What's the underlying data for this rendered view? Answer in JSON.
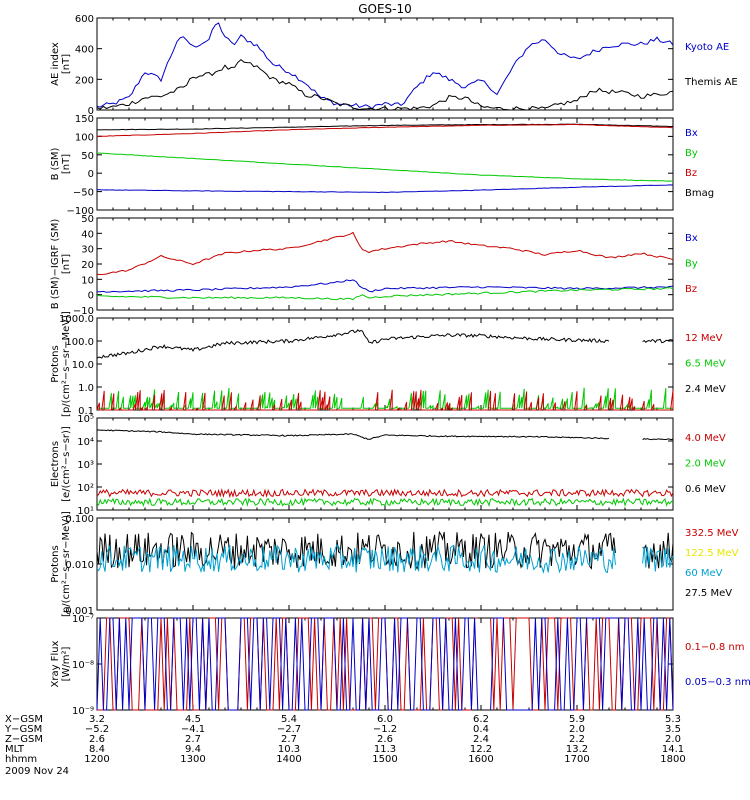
{
  "chart_data": {
    "type": "line",
    "title": "GOES-10",
    "date_label": "2009 Nov 24",
    "x_range": [
      1200,
      1800
    ],
    "panels": [
      {
        "id": "ae",
        "ylabel": [
          "AE index",
          "[nT]"
        ],
        "ylim": [
          0,
          600
        ],
        "scale": "linear",
        "yticks": [
          {
            "v": 0,
            "t": "0"
          },
          {
            "v": 200,
            "t": "200"
          },
          {
            "v": 400,
            "t": "400"
          },
          {
            "v": 600,
            "t": "600"
          }
        ],
        "legend": [
          {
            "label": "Kyoto AE",
            "color": "#0000c8"
          },
          {
            "label": "Themis AE",
            "color": "#000000"
          }
        ],
        "series": [
          {
            "name": "Kyoto AE",
            "color": "#0000c8",
            "x": [
              1200,
              1210,
              1220,
              1230,
              1240,
              1250,
              1255,
              1300,
              1310,
              1315,
              1320,
              1325,
              1330,
              1340,
              1350,
              1400,
              1410,
              1420,
              1430,
              1440,
              1450,
              1500,
              1510,
              1520,
              1530,
              1540,
              1550,
              1600,
              1605,
              1610,
              1620,
              1630,
              1640,
              1650,
              1700,
              1710,
              1720,
              1730,
              1740,
              1750,
              1800
            ],
            "y": [
              20,
              40,
              80,
              250,
              200,
              450,
              470,
              410,
              460,
              580,
              480,
              420,
              480,
              420,
              300,
              250,
              180,
              80,
              40,
              30,
              20,
              40,
              30,
              150,
              250,
              200,
              150,
              190,
              160,
              100,
              280,
              420,
              460,
              360,
              330,
              380,
              420,
              430,
              430,
              460,
              430
            ]
          },
          {
            "name": "Themis AE",
            "color": "#000000",
            "x": [
              1200,
              1210,
              1220,
              1230,
              1240,
              1250,
              1255,
              1300,
              1310,
              1320,
              1325,
              1330,
              1340,
              1350,
              1400,
              1410,
              1420,
              1430,
              1440,
              1450,
              1500,
              1510,
              1520,
              1530,
              1540,
              1550,
              1600,
              1610,
              1620,
              1630,
              1640,
              1650,
              1700,
              1710,
              1720,
              1730,
              1740,
              1750,
              1800
            ],
            "y": [
              10,
              20,
              40,
              80,
              90,
              130,
              150,
              220,
              230,
              280,
              260,
              320,
              280,
              200,
              170,
              100,
              80,
              40,
              20,
              10,
              10,
              10,
              10,
              30,
              80,
              80,
              20,
              10,
              10,
              10,
              5,
              40,
              60,
              130,
              120,
              110,
              90,
              100,
              120
            ]
          }
        ]
      },
      {
        "id": "bsm",
        "ylabel": [
          "B (SM)",
          "[nT]"
        ],
        "ylim": [
          -100,
          150
        ],
        "scale": "linear",
        "yticks": [
          {
            "v": -100,
            "t": "−100"
          },
          {
            "v": -50,
            "t": "−50"
          },
          {
            "v": 0,
            "t": "0"
          },
          {
            "v": 50,
            "t": "50"
          },
          {
            "v": 100,
            "t": "100"
          },
          {
            "v": 150,
            "t": "150"
          }
        ],
        "legend": [
          {
            "label": "Bx",
            "color": "#0000c8"
          },
          {
            "label": "By",
            "color": "#00c800"
          },
          {
            "label": "Bz",
            "color": "#c80000"
          },
          {
            "label": "Bmag",
            "color": "#000000"
          }
        ],
        "series": [
          {
            "name": "Bmag",
            "color": "#000000",
            "x": [
              1200,
              1300,
              1400,
              1500,
              1600,
              1700,
              1800
            ],
            "y": [
              118,
              120,
              125,
              130,
              132,
              133,
              127
            ]
          },
          {
            "name": "Bz",
            "color": "#c80000",
            "x": [
              1200,
              1300,
              1400,
              1500,
              1600,
              1700,
              1800
            ],
            "y": [
              100,
              108,
              118,
              125,
              130,
              132,
              124
            ]
          },
          {
            "name": "By",
            "color": "#00c800",
            "x": [
              1200,
              1300,
              1400,
              1500,
              1600,
              1700,
              1800
            ],
            "y": [
              55,
              40,
              25,
              10,
              -5,
              -15,
              -22
            ]
          },
          {
            "name": "Bx",
            "color": "#0000c8",
            "x": [
              1200,
              1300,
              1400,
              1500,
              1600,
              1700,
              1800
            ],
            "y": [
              -45,
              -48,
              -50,
              -52,
              -46,
              -38,
              -32
            ]
          }
        ]
      },
      {
        "id": "bigrf",
        "ylabel": [
          "B (SM)−IGRF (SM)",
          "[nT]"
        ],
        "ylim": [
          -10,
          50
        ],
        "scale": "linear",
        "yticks": [
          {
            "v": -10,
            "t": "−10"
          },
          {
            "v": 0,
            "t": "0"
          },
          {
            "v": 10,
            "t": "10"
          },
          {
            "v": 20,
            "t": "20"
          },
          {
            "v": 30,
            "t": "30"
          },
          {
            "v": 40,
            "t": "40"
          },
          {
            "v": 50,
            "t": "50"
          }
        ],
        "legend": [
          {
            "label": "Bx",
            "color": "#0000c8"
          },
          {
            "label": "By",
            "color": "#00c800"
          },
          {
            "label": "Bz",
            "color": "#c80000"
          }
        ],
        "series": [
          {
            "name": "Bz",
            "color": "#c80000",
            "x": [
              1200,
              1220,
              1240,
              1300,
              1320,
              1340,
              1400,
              1420,
              1440,
              1445,
              1450,
              1500,
              1520,
              1540,
              1600,
              1620,
              1640,
              1700,
              1720,
              1740,
              1800
            ],
            "y": [
              13,
              16,
              25,
              20,
              27,
              29,
              30,
              35,
              40,
              30,
              28,
              30,
              33,
              35,
              32,
              30,
              26,
              29,
              24,
              27,
              23
            ]
          },
          {
            "name": "Bx",
            "color": "#0000c8",
            "x": [
              1200,
              1300,
              1400,
              1430,
              1440,
              1445,
              1450,
              1500,
              1600,
              1700,
              1800
            ],
            "y": [
              2,
              3,
              5,
              8,
              10,
              5,
              2,
              4,
              5,
              4,
              5
            ]
          },
          {
            "name": "By",
            "color": "#00c800",
            "x": [
              1200,
              1300,
              1400,
              1440,
              1445,
              1450,
              1500,
              1600,
              1700,
              1800
            ],
            "y": [
              -1,
              -2,
              -2,
              -3,
              0,
              -2,
              -1,
              1,
              3,
              4
            ]
          }
        ]
      },
      {
        "id": "protons_low",
        "ylabel": [
          "Protons",
          "[p/(cm²−s−sr−MeV)]"
        ],
        "ylim": [
          0.1,
          1000
        ],
        "scale": "log",
        "yticks": [
          {
            "v": 0.1,
            "t": "0.1"
          },
          {
            "v": 1,
            "t": "1.0"
          },
          {
            "v": 10,
            "t": "10.0"
          },
          {
            "v": 100,
            "t": "100.0"
          },
          {
            "v": 1000,
            "t": "1000.0"
          }
        ],
        "legend": [
          {
            "label": "12 MeV",
            "color": "#c80000"
          },
          {
            "label": "6.5 MeV",
            "color": "#00c800"
          },
          {
            "label": "2.4 MeV",
            "color": "#000000"
          }
        ],
        "series": [
          {
            "name": "2.4 MeV",
            "color": "#000000",
            "x": [
              1200,
              1220,
              1240,
              1300,
              1320,
              1340,
              1400,
              1420,
              1440,
              1445,
              1450,
              1500,
              1520,
              1540,
              1600,
              1620,
              1640,
              1700,
              1720,
              1725,
              1740,
              1800
            ],
            "y": [
              20,
              30,
              60,
              40,
              80,
              90,
              100,
              150,
              250,
              300,
              80,
              120,
              150,
              180,
              170,
              140,
              120,
              110,
              100,
              null,
              100,
              100
            ],
            "noise": 0.15
          },
          {
            "name": "6.5 MeV",
            "color": "#00c800",
            "x": [
              1200,
              1800
            ],
            "y": [
              0.12,
              0.12
            ],
            "spikes": 0.4
          },
          {
            "name": "12 MeV",
            "color": "#c80000",
            "x": [
              1200,
              1800
            ],
            "y": [
              0.1,
              0.1
            ],
            "spikes": 0.3
          }
        ]
      },
      {
        "id": "electrons",
        "ylabel": [
          "Electrons",
          "[e/(cm²−s−sr)]"
        ],
        "ylim": [
          10,
          100000
        ],
        "scale": "log",
        "yticks": [
          {
            "v": 10,
            "t": "10¹"
          },
          {
            "v": 100,
            "t": "10²"
          },
          {
            "v": 1000,
            "t": "10³"
          },
          {
            "v": 10000,
            "t": "10⁴"
          },
          {
            "v": 100000,
            "t": "10⁵"
          }
        ],
        "legend": [
          {
            "label": "4.0 MeV",
            "color": "#c80000"
          },
          {
            "label": "2.0 MeV",
            "color": "#00c800"
          },
          {
            "label": "0.6 MeV",
            "color": "#000000"
          }
        ],
        "series": [
          {
            "name": "0.6 MeV",
            "color": "#000000",
            "x": [
              1200,
              1240,
              1300,
              1340,
              1400,
              1440,
              1445,
              1450,
              1500,
              1540,
              1600,
              1640,
              1700,
              1720,
              1730,
              1740,
              1800
            ],
            "y": [
              30000,
              25000,
              20000,
              18000,
              17000,
              20000,
              15000,
              12000,
              18000,
              16000,
              16000,
              15000,
              14000,
              13000,
              null,
              12000,
              12000
            ],
            "noise": 0.05
          },
          {
            "name": "4.0 MeV",
            "color": "#c80000",
            "x": [
              1200,
              1800
            ],
            "y": [
              55,
              55
            ],
            "noise": 0.3
          },
          {
            "name": "2.0 MeV",
            "color": "#00c800",
            "x": [
              1200,
              1800
            ],
            "y": [
              22,
              22
            ],
            "noise": 0.3
          }
        ]
      },
      {
        "id": "protons_high",
        "ylabel": [
          "Protons",
          "[p/(cm²−s−sr−MeV)]"
        ],
        "ylim": [
          0.001,
          0.1
        ],
        "scale": "log",
        "yticks": [
          {
            "v": 0.001,
            "t": "0.001"
          },
          {
            "v": 0.01,
            "t": "0.010"
          },
          {
            "v": 0.1,
            "t": "0.100"
          }
        ],
        "legend": [
          {
            "label": "332.5 MeV",
            "color": "#c80000"
          },
          {
            "label": "122.5 MeV",
            "color": "#e6e600"
          },
          {
            "label": "60 MeV",
            "color": "#00a0d0"
          },
          {
            "label": "27.5 MeV",
            "color": "#000000"
          }
        ],
        "series": [
          {
            "name": "27.5 MeV",
            "color": "#000000",
            "x": [
              1200,
              1800
            ],
            "y": [
              0.02,
              0.02
            ],
            "noise": 0.8,
            "gap": [
              1725,
              1740
            ]
          },
          {
            "name": "60 MeV",
            "color": "#00a0d0",
            "x": [
              1200,
              1800
            ],
            "y": [
              0.013,
              0.013
            ],
            "noise": 0.6,
            "gap": [
              1725,
              1740
            ]
          }
        ]
      },
      {
        "id": "xray",
        "ylabel": [
          "Xray Flux",
          "[W/m²]"
        ],
        "ylim": [
          1e-09,
          1e-07
        ],
        "scale": "log",
        "yticks": [
          {
            "v": 1e-09,
            "t": "10⁻⁹"
          },
          {
            "v": 1e-08,
            "t": "10⁻⁸"
          },
          {
            "v": 1e-07,
            "t": "10⁻⁷"
          }
        ],
        "legend": [
          {
            "label": "0.1−0.8 nm",
            "color": "#c80000"
          },
          {
            "label": "0.05−0.3 nm",
            "color": "#0000c8"
          }
        ],
        "series": [
          {
            "name": "0.1−0.8 nm",
            "color": "#c80000",
            "x": [
              1200,
              1640,
              1645,
              1650,
              1655,
              1700,
              1705,
              1710,
              1800
            ],
            "y": [
              3.5e-09,
              3.5e-09,
              1e-08,
              2.5e-08,
              2.2e-08,
              1e-08,
              3.5e-09,
              3.5e-09,
              3.5e-09
            ],
            "gap": [
              1600,
              1605
            ]
          },
          {
            "name": "0.05−0.3 nm",
            "color": "#0000c8",
            "x": [
              1200,
              1800
            ],
            "y": [
              3.5e-09,
              3.5e-09
            ],
            "gap": [
              1600,
              1605
            ]
          }
        ]
      }
    ],
    "ephemeris": {
      "labels": [
        "X−GSM",
        "Y−GSM",
        "Z−GSM",
        "MLT",
        "hhmm"
      ],
      "columns": [
        [
          "3.2",
          "−5.2",
          "2.6",
          "8.4",
          "1200"
        ],
        [
          "4.5",
          "−4.1",
          "2.7",
          "9.4",
          "1300"
        ],
        [
          "5.4",
          "−2.7",
          "2.7",
          "10.3",
          "1400"
        ],
        [
          "6.0",
          "−1.2",
          "2.6",
          "11.3",
          "1500"
        ],
        [
          "6.2",
          "0.4",
          "2.4",
          "12.2",
          "1600"
        ],
        [
          "5.9",
          "2.0",
          "2.2",
          "13.2",
          "1700"
        ],
        [
          "5.3",
          "3.5",
          "2.0",
          "14.1",
          "1800"
        ]
      ]
    }
  }
}
